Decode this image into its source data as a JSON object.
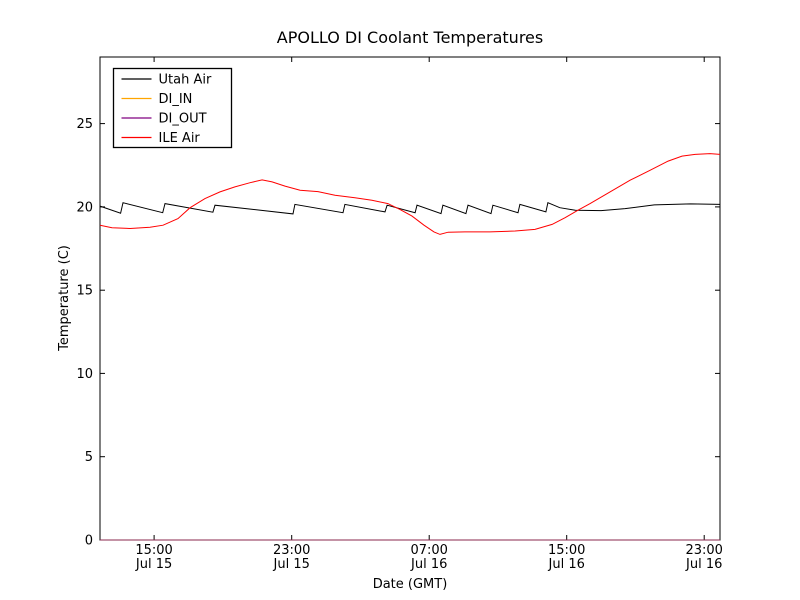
{
  "window": {
    "background": "#ffffff"
  },
  "chart_data": {
    "type": "line",
    "title": "APOLLO DI Coolant Temperatures",
    "xlabel": "Date (GMT)",
    "ylabel": "Temperature (C)",
    "grid": false,
    "legend_position": "upper left",
    "x_axis": {
      "unit": "hours since Jul 15 00:00 GMT",
      "min": 11.85,
      "max": 47.92,
      "ticks": [
        {
          "value": 15,
          "time": "15:00",
          "date": "Jul 15"
        },
        {
          "value": 23,
          "time": "23:00",
          "date": "Jul 15"
        },
        {
          "value": 31,
          "time": "07:00",
          "date": "Jul 16"
        },
        {
          "value": 39,
          "time": "15:00",
          "date": "Jul 16"
        },
        {
          "value": 47,
          "time": "23:00",
          "date": "Jul 16"
        }
      ]
    },
    "y_axis": {
      "min": 0,
      "max": 29,
      "ticks": [
        0,
        5,
        10,
        15,
        20,
        25
      ]
    },
    "series": [
      {
        "name": "Utah Air",
        "color": "#000000",
        "points": [
          [
            11.85,
            20.05
          ],
          [
            13.05,
            19.62
          ],
          [
            13.19,
            20.25
          ],
          [
            15.5,
            19.65
          ],
          [
            15.63,
            20.2
          ],
          [
            18.42,
            19.68
          ],
          [
            18.54,
            20.1
          ],
          [
            23.08,
            19.58
          ],
          [
            23.19,
            20.15
          ],
          [
            25.99,
            19.65
          ],
          [
            26.1,
            20.15
          ],
          [
            28.43,
            19.7
          ],
          [
            28.55,
            20.1
          ],
          [
            30.18,
            19.65
          ],
          [
            30.29,
            20.1
          ],
          [
            31.69,
            19.6
          ],
          [
            31.8,
            20.1
          ],
          [
            33.14,
            19.6
          ],
          [
            33.26,
            20.1
          ],
          [
            34.6,
            19.6
          ],
          [
            34.71,
            20.1
          ],
          [
            36.17,
            19.65
          ],
          [
            36.28,
            20.15
          ],
          [
            37.79,
            19.7
          ],
          [
            37.91,
            20.25
          ],
          [
            38.6,
            19.95
          ],
          [
            39.5,
            19.8
          ],
          [
            41.0,
            19.78
          ],
          [
            42.4,
            19.9
          ],
          [
            44.1,
            20.12
          ],
          [
            46.2,
            20.18
          ],
          [
            47.92,
            20.15
          ]
        ]
      },
      {
        "name": "DI_IN",
        "color": "#ffa500",
        "opacity": 0.6,
        "points": [
          [
            11.85,
            0
          ],
          [
            47.92,
            0
          ]
        ]
      },
      {
        "name": "DI_OUT",
        "color": "#800080",
        "opacity": 0.6,
        "points": [
          [
            11.85,
            0
          ],
          [
            47.92,
            0
          ]
        ]
      },
      {
        "name": "ILE Air",
        "color": "#ff0000",
        "points": [
          [
            11.85,
            18.9
          ],
          [
            12.55,
            18.75
          ],
          [
            13.6,
            18.7
          ],
          [
            14.76,
            18.78
          ],
          [
            15.52,
            18.9
          ],
          [
            16.39,
            19.3
          ],
          [
            17.09,
            19.95
          ],
          [
            17.96,
            20.5
          ],
          [
            18.83,
            20.9
          ],
          [
            19.7,
            21.2
          ],
          [
            20.58,
            21.45
          ],
          [
            21.28,
            21.62
          ],
          [
            21.86,
            21.5
          ],
          [
            22.61,
            21.25
          ],
          [
            23.49,
            21.0
          ],
          [
            24.53,
            20.92
          ],
          [
            25.52,
            20.7
          ],
          [
            26.68,
            20.55
          ],
          [
            27.67,
            20.4
          ],
          [
            28.6,
            20.2
          ],
          [
            29.3,
            19.85
          ],
          [
            30.0,
            19.45
          ],
          [
            30.7,
            18.9
          ],
          [
            31.28,
            18.5
          ],
          [
            31.63,
            18.35
          ],
          [
            32.1,
            18.48
          ],
          [
            33.08,
            18.5
          ],
          [
            34.54,
            18.5
          ],
          [
            36.0,
            18.55
          ],
          [
            37.16,
            18.65
          ],
          [
            38.15,
            18.95
          ],
          [
            38.91,
            19.35
          ],
          [
            39.66,
            19.8
          ],
          [
            40.36,
            20.2
          ],
          [
            41.52,
            20.9
          ],
          [
            42.69,
            21.6
          ],
          [
            43.85,
            22.2
          ],
          [
            44.9,
            22.75
          ],
          [
            45.71,
            23.05
          ],
          [
            46.47,
            23.15
          ],
          [
            47.34,
            23.2
          ],
          [
            47.92,
            23.15
          ]
        ]
      }
    ]
  }
}
